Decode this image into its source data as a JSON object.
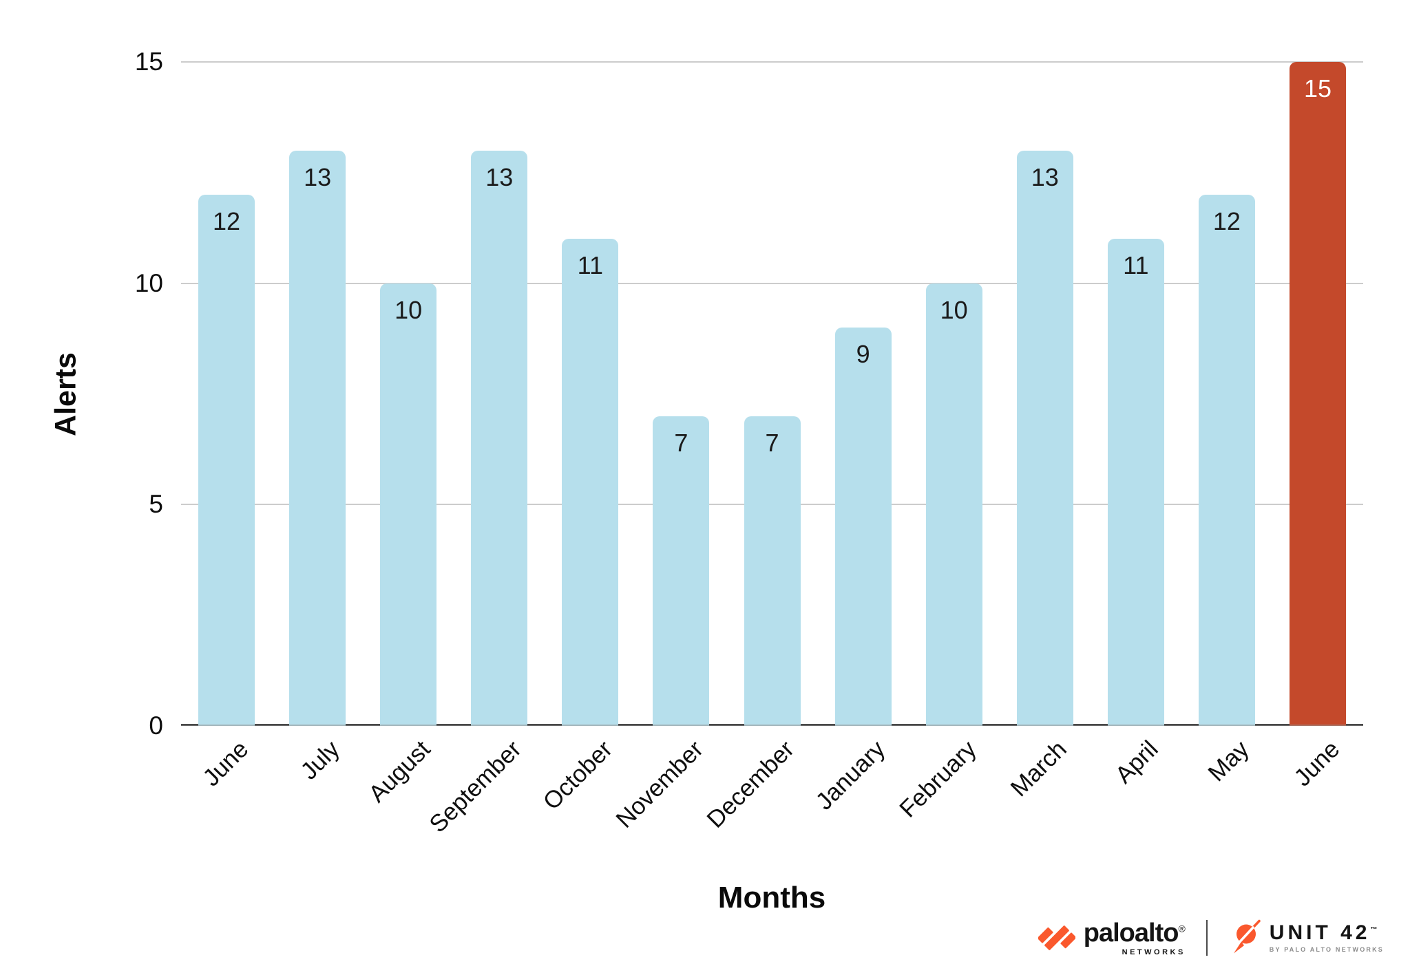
{
  "chart_data": {
    "type": "bar",
    "categories": [
      "June",
      "July",
      "August",
      "September",
      "October",
      "November",
      "December",
      "January",
      "February",
      "March",
      "April",
      "May",
      "June"
    ],
    "values": [
      12,
      13,
      10,
      13,
      11,
      7,
      7,
      9,
      10,
      13,
      11,
      12,
      15
    ],
    "highlight_index": 12,
    "xlabel": "Months",
    "ylabel": "Alerts",
    "ylim": [
      0,
      15
    ],
    "yticks": [
      0,
      5,
      10,
      15
    ],
    "grid": "horizontal",
    "legend": "none",
    "bar_color": "#b6dfec",
    "highlight_color": "#c4492b",
    "value_label_color": "#1a1a1a",
    "highlight_value_label_color": "#ffffff",
    "gridline_color": "#cccccc",
    "axis_line_color": "#333333"
  },
  "footer": {
    "paloalto": {
      "brand": "paloalto",
      "registered_mark": "®",
      "subtext": "NETWORKS"
    },
    "unit42": {
      "brand": "UNIT 42",
      "trademark": "™",
      "subtext": "BY PALO ALTO NETWORKS"
    },
    "brand_orange": "#fa582d"
  }
}
